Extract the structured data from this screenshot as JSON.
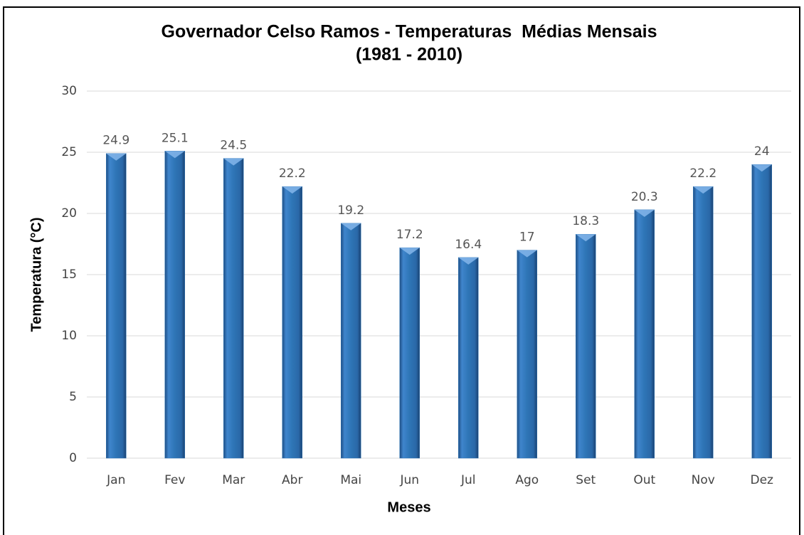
{
  "chart_data": {
    "type": "bar",
    "title": "Governador Celso Ramos - Temperaturas  Médias Mensais",
    "subtitle": "(1981 - 2010)",
    "x_label": "Meses",
    "y_label": "Temperatura (°C)",
    "categories": [
      "Jan",
      "Fev",
      "Mar",
      "Abr",
      "Mai",
      "Jun",
      "Jul",
      "Ago",
      "Set",
      "Out",
      "Nov",
      "Dez"
    ],
    "values": [
      24.9,
      25.1,
      24.5,
      22.2,
      19.2,
      17.2,
      16.4,
      17,
      18.3,
      20.3,
      22.2,
      24
    ],
    "color": "#2e75b6",
    "ylim": [
      0,
      30
    ],
    "yticks": [
      0,
      5,
      10,
      15,
      20,
      25,
      30
    ],
    "grid": true
  }
}
